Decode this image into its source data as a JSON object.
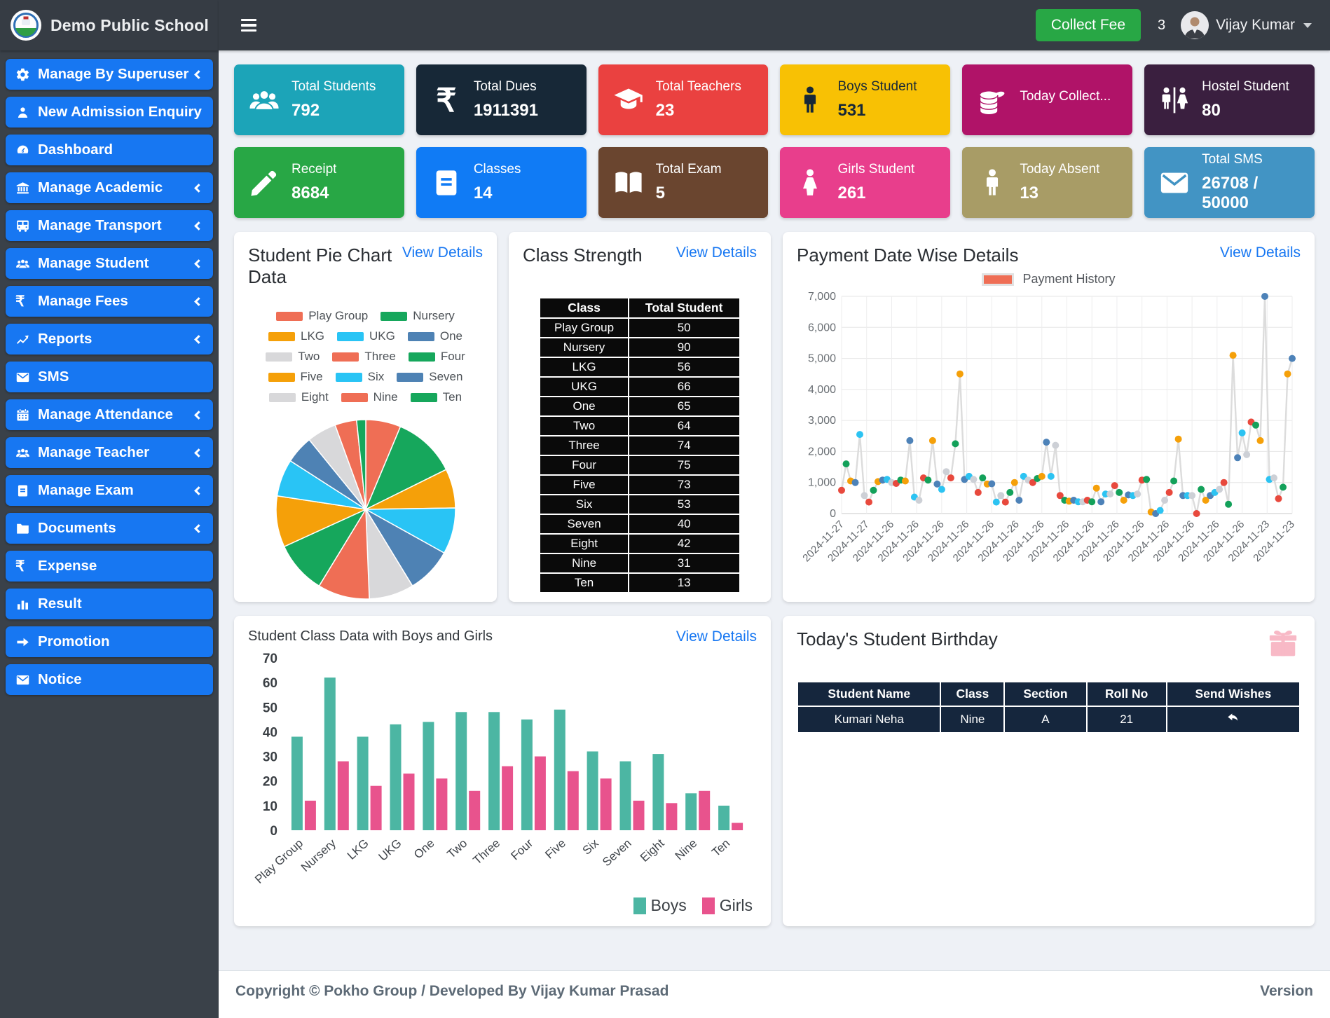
{
  "navbar": {
    "school_name": "Demo Public School",
    "collect_fee": "Collect Fee",
    "calendar_count": "3",
    "user_name": "Vijay Kumar"
  },
  "sidebar": {
    "items": [
      {
        "label": "Manage By Superuser",
        "icon": "gear",
        "submenu": true
      },
      {
        "label": "New Admission Enquiry",
        "icon": "person",
        "submenu": false
      },
      {
        "label": "Dashboard",
        "icon": "dashboard",
        "submenu": false
      },
      {
        "label": "Manage Academic",
        "icon": "bank",
        "submenu": true
      },
      {
        "label": "Manage Transport",
        "icon": "bus",
        "submenu": true
      },
      {
        "label": "Manage Student",
        "icon": "users",
        "submenu": true
      },
      {
        "label": "Manage Fees",
        "icon": "rupee",
        "submenu": true
      },
      {
        "label": "Reports",
        "icon": "chart-line",
        "submenu": true
      },
      {
        "label": "SMS",
        "icon": "envelope",
        "submenu": false
      },
      {
        "label": "Manage Attendance",
        "icon": "calendar",
        "submenu": true
      },
      {
        "label": "Manage Teacher",
        "icon": "users",
        "submenu": true
      },
      {
        "label": "Manage Exam",
        "icon": "journal",
        "submenu": true
      },
      {
        "label": "Documents",
        "icon": "folder",
        "submenu": true
      },
      {
        "label": "Expense",
        "icon": "rupee",
        "submenu": false
      },
      {
        "label": "Result",
        "icon": "bar-chart",
        "submenu": false
      },
      {
        "label": "Promotion",
        "icon": "arrow-right",
        "submenu": false
      },
      {
        "label": "Notice",
        "icon": "envelope",
        "submenu": false
      }
    ]
  },
  "stat_cards": [
    {
      "label": "Total Students",
      "value": "792",
      "icon": "users",
      "bg": "#1ca4b8",
      "fg": "#ffffff"
    },
    {
      "label": "Total Dues",
      "value": "1911391",
      "icon": "rupee",
      "bg": "#172837",
      "fg": "#ffffff"
    },
    {
      "label": "Total Teachers",
      "value": "23",
      "icon": "grad-cap",
      "bg": "#ea4140",
      "fg": "#ffffff"
    },
    {
      "label": "Boys Student",
      "value": "531",
      "icon": "male",
      "bg": "#f8c104",
      "fg": "#172837"
    },
    {
      "label": "Today Collect...",
      "value": "",
      "icon": "coins",
      "bg": "#b01368",
      "fg": "#ffffff"
    },
    {
      "label": "Hostel Student",
      "value": "80",
      "icon": "restroom",
      "bg": "#3a1f3f",
      "fg": "#ffffff"
    },
    {
      "label": "Receipt",
      "value": "8684",
      "icon": "pencil",
      "bg": "#28a745",
      "fg": "#ffffff"
    },
    {
      "label": "Classes",
      "value": "14",
      "icon": "journal",
      "bg": "#107bf5",
      "fg": "#ffffff"
    },
    {
      "label": "Total Exam",
      "value": "5",
      "icon": "open-book",
      "bg": "#6a452f",
      "fg": "#ffffff"
    },
    {
      "label": "Girls Student",
      "value": "261",
      "icon": "female",
      "bg": "#e83e8c",
      "fg": "#ffffff"
    },
    {
      "label": "Today Absent",
      "value": "13",
      "icon": "male",
      "bg": "#a89c66",
      "fg": "#ffffff"
    },
    {
      "label": "Total SMS",
      "value": "26708 / 50000",
      "icon": "envelope",
      "bg": "#4294c4",
      "fg": "#ffffff"
    }
  ],
  "pie_card": {
    "title": "Student Pie Chart Data",
    "view_details": "View Details"
  },
  "class_strength": {
    "title": "Class Strength",
    "view_details": "View Details",
    "headers": [
      "Class",
      "Total Student"
    ],
    "rows": [
      [
        "Play Group",
        "50"
      ],
      [
        "Nursery",
        "90"
      ],
      [
        "LKG",
        "56"
      ],
      [
        "UKG",
        "66"
      ],
      [
        "One",
        "65"
      ],
      [
        "Two",
        "64"
      ],
      [
        "Three",
        "74"
      ],
      [
        "Four",
        "75"
      ],
      [
        "Five",
        "73"
      ],
      [
        "Six",
        "53"
      ],
      [
        "Seven",
        "40"
      ],
      [
        "Eight",
        "42"
      ],
      [
        "Nine",
        "31"
      ],
      [
        "Ten",
        "13"
      ]
    ]
  },
  "payment_card": {
    "title": "Payment Date Wise Details",
    "view_details": "View Details",
    "legend": "Payment History"
  },
  "bar_card": {
    "title": "Student Class Data with Boys and Girls",
    "view_details": "View Details"
  },
  "birthday": {
    "title": "Today's Student Birthday",
    "headers": [
      "Student Name",
      "Class",
      "Section",
      "Roll No",
      "Send Wishes"
    ],
    "rows": [
      {
        "name": "Kumari Neha",
        "class": "Nine",
        "section": "A",
        "roll": "21"
      }
    ]
  },
  "footer": {
    "copyright": "Copyright © Pokho Group / Developed By Vijay Kumar Prasad",
    "version": "Version"
  },
  "chart_data": [
    {
      "type": "pie",
      "title": "Student Pie Chart Data",
      "categories": [
        "Play Group",
        "Nursery",
        "LKG",
        "UKG",
        "One",
        "Two",
        "Three",
        "Four",
        "Five",
        "Six",
        "Seven",
        "Eight",
        "Nine",
        "Ten"
      ],
      "values": [
        50,
        90,
        56,
        66,
        65,
        64,
        74,
        75,
        73,
        53,
        40,
        42,
        31,
        13
      ],
      "colors": [
        "#ef6e55",
        "#16a75c",
        "#f5a009",
        "#29c4f5",
        "#4e82b4",
        "#d8d8da",
        "#ef6e55",
        "#16a75c",
        "#f5a009",
        "#29c4f5",
        "#4e82b4",
        "#d8d8da",
        "#ef6e55",
        "#16a75c"
      ],
      "legend_position": "top"
    },
    {
      "type": "line",
      "title": "Payment Date Wise Details",
      "legend": [
        "Payment History"
      ],
      "legend_color": "#ef6e55",
      "x_labels": [
        "2024-11-27",
        "2024-11-27",
        "2024-11-26",
        "2024-11-26",
        "2024-11-26",
        "2024-11-26",
        "2024-11-26",
        "2024-11-26",
        "2024-11-26",
        "2024-11-26",
        "2024-11-26",
        "2024-11-26",
        "2024-11-26",
        "2024-11-26",
        "2024-11-26",
        "2024-11-26",
        "2024-11-26",
        "2024-11-23",
        "2024-11-23"
      ],
      "ylim": [
        0,
        7000
      ],
      "y_ticks": [
        0,
        1000,
        2000,
        3000,
        4000,
        5000,
        6000,
        7000
      ],
      "line_color": "#dcdcdc",
      "point_colors": [
        "#e8493d",
        "#13a15a",
        "#f5a009",
        "#4d82b8",
        "#2cc3f2",
        "#cdd0d6"
      ],
      "values": [
        750,
        1600,
        1050,
        1000,
        2550,
        580,
        370,
        750,
        1030,
        1080,
        1100,
        1000,
        970,
        1080,
        1050,
        2350,
        530,
        430,
        1150,
        1080,
        2350,
        950,
        780,
        1350,
        1150,
        2250,
        4500,
        1100,
        1200,
        1100,
        680,
        1150,
        950,
        960,
        370,
        580,
        370,
        680,
        1000,
        430,
        1200,
        1080,
        1000,
        1130,
        1200,
        2300,
        1200,
        2200,
        580,
        430,
        400,
        430,
        380,
        380,
        430,
        380,
        820,
        380,
        630,
        630,
        900,
        680,
        430,
        600,
        580,
        630,
        1080,
        1100,
        50,
        0,
        100,
        430,
        680,
        1050,
        2400,
        580,
        580,
        580,
        0,
        780,
        430,
        580,
        680,
        780,
        1000,
        300,
        5100,
        1800,
        2600,
        1900,
        2950,
        2850,
        2350,
        7000,
        1100,
        1150,
        480,
        850,
        4500,
        5000
      ]
    },
    {
      "type": "bar",
      "title": "Student Class Data with Boys and Girls",
      "categories": [
        "Play Group",
        "Nursery",
        "LKG",
        "UKG",
        "One",
        "Two",
        "Three",
        "Four",
        "Five",
        "Six",
        "Seven",
        "Eight",
        "Nine",
        "Ten"
      ],
      "series": [
        {
          "name": "Boys",
          "color": "#4cb6a3",
          "values": [
            38,
            62,
            38,
            43,
            44,
            48,
            48,
            45,
            49,
            32,
            28,
            31,
            15,
            10
          ]
        },
        {
          "name": "Girls",
          "color": "#e8538d",
          "values": [
            12,
            28,
            18,
            23,
            21,
            16,
            26,
            30,
            24,
            21,
            12,
            11,
            16,
            3
          ]
        }
      ],
      "ylim": [
        0,
        70
      ],
      "y_ticks": [
        0,
        10,
        20,
        30,
        40,
        50,
        60,
        70
      ],
      "legend_position": "bottom-right"
    }
  ]
}
